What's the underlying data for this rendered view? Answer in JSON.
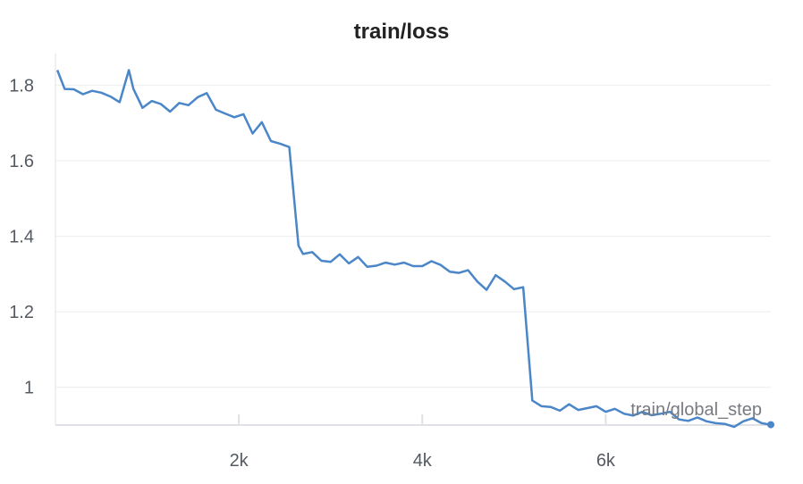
{
  "chart_data": {
    "type": "line",
    "title": "train/loss",
    "xlabel": "train/global_step",
    "ylabel": "",
    "xlim": [
      0,
      7800
    ],
    "ylim": [
      0.9,
      1.86
    ],
    "xticks": [
      {
        "v": 2000,
        "label": "2k"
      },
      {
        "v": 4000,
        "label": "4k"
      },
      {
        "v": 6000,
        "label": "6k"
      }
    ],
    "yticks": [
      {
        "v": 1.0,
        "label": "1"
      },
      {
        "v": 1.2,
        "label": "1.2"
      },
      {
        "v": 1.4,
        "label": "1.4"
      },
      {
        "v": 1.6,
        "label": "1.6"
      },
      {
        "v": 1.8,
        "label": "1.8"
      }
    ],
    "grid": true,
    "color": "#4a86c8",
    "series": [
      {
        "x": [
          20,
          100,
          200,
          300,
          400,
          500,
          600,
          700,
          800,
          850,
          950,
          1050,
          1150,
          1250,
          1350,
          1450,
          1550,
          1650,
          1750,
          1850,
          1950,
          2050,
          2150,
          2250,
          2350,
          2450,
          2550,
          2650,
          2700,
          2800,
          2900,
          3000,
          3100,
          3200,
          3300,
          3400,
          3500,
          3600,
          3700,
          3800,
          3900,
          4000,
          4100,
          4200,
          4300,
          4400,
          4500,
          4600,
          4700,
          4800,
          4900,
          5000,
          5100,
          5200,
          5300,
          5400,
          5500,
          5600,
          5700,
          5800,
          5900,
          6000,
          6100,
          6200,
          6300,
          6400,
          6500,
          6600,
          6700,
          6800,
          6900,
          7000,
          7100,
          7200,
          7300,
          7400,
          7500,
          7600,
          7700,
          7800
        ],
        "y": [
          1.84,
          1.79,
          1.789,
          1.776,
          1.785,
          1.78,
          1.77,
          1.755,
          1.84,
          1.79,
          1.74,
          1.758,
          1.75,
          1.73,
          1.753,
          1.747,
          1.768,
          1.779,
          1.735,
          1.725,
          1.715,
          1.723,
          1.672,
          1.702,
          1.652,
          1.645,
          1.636,
          1.375,
          1.353,
          1.358,
          1.335,
          1.332,
          1.352,
          1.328,
          1.345,
          1.319,
          1.322,
          1.33,
          1.325,
          1.33,
          1.321,
          1.321,
          1.334,
          1.324,
          1.306,
          1.303,
          1.31,
          1.28,
          1.258,
          1.297,
          1.28,
          1.26,
          1.265,
          0.965,
          0.95,
          0.948,
          0.938,
          0.955,
          0.94,
          0.945,
          0.95,
          0.935,
          0.943,
          0.93,
          0.925,
          0.935,
          0.926,
          0.93,
          0.935,
          0.915,
          0.911,
          0.92,
          0.91,
          0.905,
          0.903,
          0.895,
          0.91,
          0.918,
          0.905,
          0.901
        ]
      }
    ]
  }
}
